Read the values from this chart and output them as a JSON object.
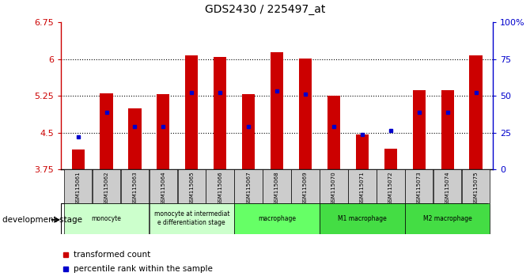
{
  "title": "GDS2430 / 225497_at",
  "samples": [
    "GSM115061",
    "GSM115062",
    "GSM115063",
    "GSM115064",
    "GSM115065",
    "GSM115066",
    "GSM115067",
    "GSM115068",
    "GSM115069",
    "GSM115070",
    "GSM115071",
    "GSM115072",
    "GSM115073",
    "GSM115074",
    "GSM115075"
  ],
  "transformed_count": [
    4.15,
    5.3,
    5.0,
    5.28,
    6.07,
    6.05,
    5.28,
    6.14,
    6.01,
    5.25,
    4.46,
    4.18,
    5.37,
    5.37,
    6.07
  ],
  "percentile_rank": [
    4.42,
    4.92,
    4.62,
    4.62,
    5.32,
    5.32,
    4.62,
    5.35,
    5.28,
    4.62,
    4.46,
    4.55,
    4.92,
    4.92,
    5.32
  ],
  "baseline": 3.75,
  "ylim_left": [
    3.75,
    6.75
  ],
  "ylim_right": [
    0,
    100
  ],
  "yticks_left": [
    3.75,
    4.5,
    5.25,
    6.0,
    6.75
  ],
  "yticks_right": [
    0,
    25,
    50,
    75,
    100
  ],
  "ytick_labels_left": [
    "3.75",
    "4.5",
    "5.25",
    "6",
    "6.75"
  ],
  "ytick_labels_right": [
    "0",
    "25",
    "50",
    "75",
    "100%"
  ],
  "groups": [
    {
      "label": "monocyte",
      "indices": [
        0,
        1,
        2
      ],
      "color": "#ccffcc"
    },
    {
      "label": "monocyte at intermediat\ne differentiation stage",
      "indices": [
        3,
        4,
        5
      ],
      "color": "#ccffcc"
    },
    {
      "label": "macrophage",
      "indices": [
        6,
        7,
        8
      ],
      "color": "#66ff66"
    },
    {
      "label": "M1 macrophage",
      "indices": [
        9,
        10,
        11
      ],
      "color": "#44dd44"
    },
    {
      "label": "M2 macrophage",
      "indices": [
        12,
        13,
        14
      ],
      "color": "#44dd44"
    }
  ],
  "bar_color": "#cc0000",
  "percentile_color": "#0000cc",
  "bar_width": 0.45,
  "xlabel": "development stage",
  "legend_items": [
    "transformed count",
    "percentile rank within the sample"
  ],
  "legend_colors": [
    "#cc0000",
    "#0000cc"
  ],
  "tick_label_color_left": "#cc0000",
  "tick_label_color_right": "#0000cc",
  "sample_bg_color": "#cccccc"
}
